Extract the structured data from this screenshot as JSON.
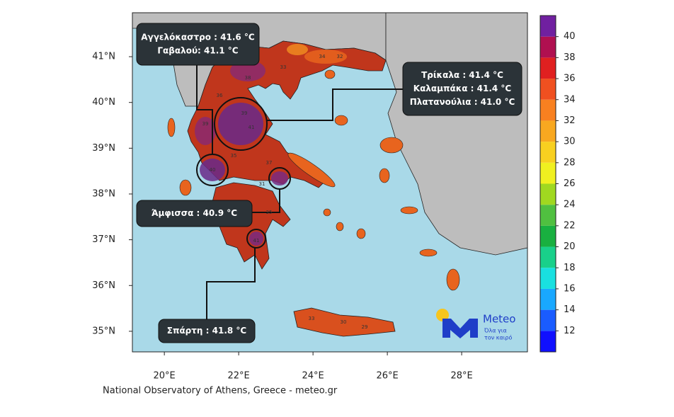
{
  "map": {
    "xlim": [
      19.14,
      29.77
    ],
    "ylim": [
      34.55,
      41.96
    ],
    "xticks": [
      {
        "value": 20,
        "label": "20°E"
      },
      {
        "value": 22,
        "label": "22°E"
      },
      {
        "value": 24,
        "label": "24°E"
      },
      {
        "value": 26,
        "label": "26°E"
      },
      {
        "value": 28,
        "label": "28°E"
      }
    ],
    "yticks": [
      {
        "value": 35,
        "label": "35°N"
      },
      {
        "value": 36,
        "label": "36°N"
      },
      {
        "value": 37,
        "label": "37°N"
      },
      {
        "value": 38,
        "label": "38°N"
      },
      {
        "value": 39,
        "label": "39°N"
      },
      {
        "value": 40,
        "label": "40°N"
      },
      {
        "value": 41,
        "label": "41°N"
      }
    ],
    "station_values": [
      34,
      38,
      39,
      41,
      36,
      33,
      35,
      37,
      40,
      32,
      30,
      29,
      33,
      41,
      34,
      35,
      39,
      31
    ]
  },
  "colorbar": {
    "clim": [
      10,
      42
    ],
    "ticks": [
      12,
      14,
      16,
      18,
      20,
      22,
      24,
      26,
      28,
      30,
      32,
      34,
      36,
      38,
      40
    ],
    "colors": [
      "#1010ff",
      "#1a5cff",
      "#19a8ff",
      "#19e0e0",
      "#19d08a",
      "#19b040",
      "#50c040",
      "#a0d820",
      "#f0f020",
      "#f8d020",
      "#f8a820",
      "#f88020",
      "#f05020",
      "#e02020",
      "#b01050",
      "#7020a0"
    ]
  },
  "callouts": [
    {
      "lines": [
        "Αγγελόκαστρο : 41.6 °C",
        "Γαβαλού: 41.1 °C"
      ]
    },
    {
      "lines": [
        "Τρίκαλα : 41.4 °C",
        "Καλαμπάκα : 41.4 °C",
        "Πλατανούλια : 41.0 °C"
      ]
    },
    {
      "lines": [
        "Άμφισσα : 40.9 °C"
      ]
    },
    {
      "lines": [
        "Σπάρτη : 41.8  °C"
      ]
    }
  ],
  "logo": {
    "name": "Meteo",
    "tagline": [
      "Όλα για",
      "τον καιρό"
    ]
  },
  "credit": "National Observatory of Athens, Greece - meteo.gr"
}
